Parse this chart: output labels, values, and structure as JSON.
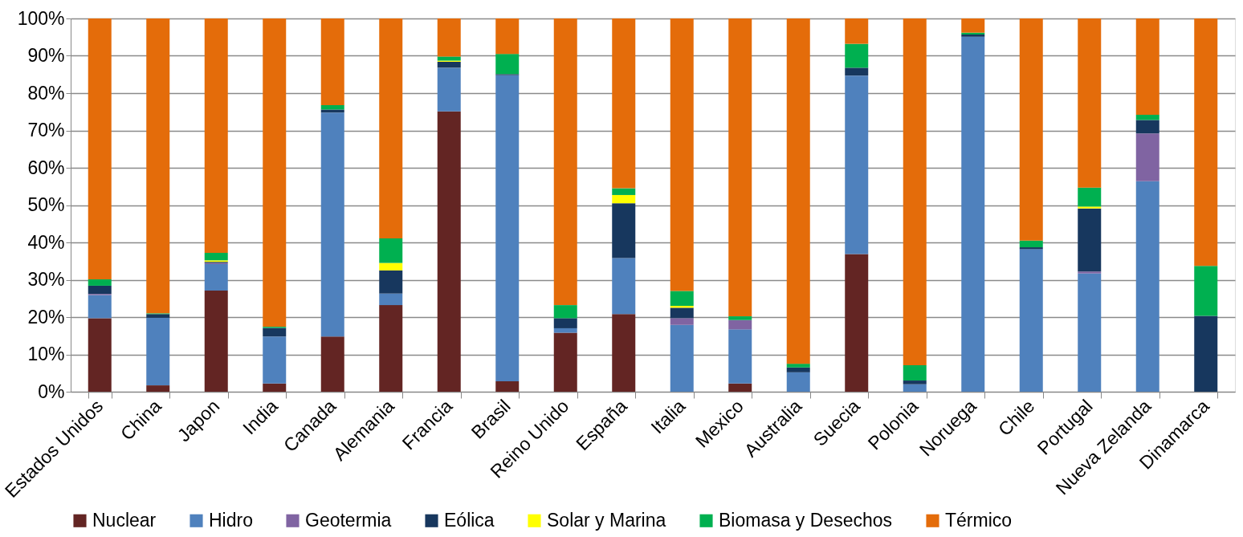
{
  "chart_data": {
    "type": "bar",
    "stacked": true,
    "categories": [
      "Estados Unidos",
      "China",
      "Japon",
      "India",
      "Canada",
      "Alemania",
      "Francia",
      "Brasil",
      "Reino Unido",
      "España",
      "Italia",
      "Mexico",
      "Australia",
      "Suecia",
      "Polonia",
      "Noruega",
      "Chile",
      "Portugal",
      "Nueva Zelanda",
      "Dinamarca"
    ],
    "series": [
      {
        "name": "Nuclear",
        "color": "#632523",
        "values": [
          19.7,
          1.7,
          27.1,
          2.2,
          14.8,
          23.2,
          75.1,
          2.8,
          15.8,
          20.8,
          0,
          2.2,
          0,
          36.9,
          0,
          0,
          0,
          0,
          0,
          0
        ]
      },
      {
        "name": "Hidro",
        "color": "#4f81bd",
        "values": [
          6.2,
          18.1,
          7.1,
          12.6,
          60.0,
          3.1,
          11.7,
          82.0,
          1.2,
          15.0,
          17.9,
          14.5,
          5.2,
          47.8,
          2.0,
          95.1,
          38.2,
          31.7,
          56.4,
          0
        ]
      },
      {
        "name": "Geotermia",
        "color": "#8064a2",
        "values": [
          0.3,
          0,
          0.3,
          0,
          0,
          0,
          0,
          0,
          0,
          0,
          1.8,
          2.5,
          0,
          0,
          0,
          0,
          0,
          0.5,
          12.8,
          0
        ]
      },
      {
        "name": "Eólica",
        "color": "#17375e",
        "values": [
          2.2,
          1.0,
          0.3,
          2.3,
          0.8,
          6.2,
          1.6,
          0.3,
          2.7,
          14.7,
          2.8,
          0,
          1.3,
          2.1,
          1.0,
          0.6,
          0.5,
          16.9,
          3.6,
          20.3
        ]
      },
      {
        "name": "Solar y Marina",
        "color": "#ffff00",
        "values": [
          0,
          0,
          0.4,
          0,
          0,
          2.0,
          0.3,
          0,
          0,
          2.2,
          0.5,
          0,
          0,
          0,
          0,
          0,
          0,
          0.5,
          0,
          0
        ]
      },
      {
        "name": "Biomasa y Desechos",
        "color": "#00b050",
        "values": [
          1.7,
          0.2,
          2.0,
          0.3,
          1.2,
          6.6,
          1.1,
          5.4,
          3.5,
          1.8,
          4.0,
          1.0,
          1.0,
          6.4,
          4.1,
          0.5,
          1.8,
          5.1,
          1.4,
          13.4
        ]
      },
      {
        "name": "Térmico",
        "color": "#e46c0a",
        "values": [
          69.9,
          79.0,
          62.8,
          82.6,
          23.2,
          58.9,
          10.2,
          9.5,
          76.8,
          45.5,
          73.0,
          79.8,
          92.5,
          6.8,
          92.9,
          3.8,
          59.5,
          45.3,
          25.8,
          66.3
        ]
      }
    ],
    "ylim": [
      0,
      100
    ],
    "yticks": [
      {
        "value": 0,
        "label": "0%"
      },
      {
        "value": 10,
        "label": "10%"
      },
      {
        "value": 20,
        "label": "20%"
      },
      {
        "value": 30,
        "label": "30%"
      },
      {
        "value": 40,
        "label": "40%"
      },
      {
        "value": 50,
        "label": "50%"
      },
      {
        "value": 60,
        "label": "60%"
      },
      {
        "value": 70,
        "label": "70%"
      },
      {
        "value": 80,
        "label": "80%"
      },
      {
        "value": 90,
        "label": "90%"
      },
      {
        "value": 100,
        "label": "100%"
      }
    ],
    "grid": "y",
    "legend": "bottom"
  }
}
